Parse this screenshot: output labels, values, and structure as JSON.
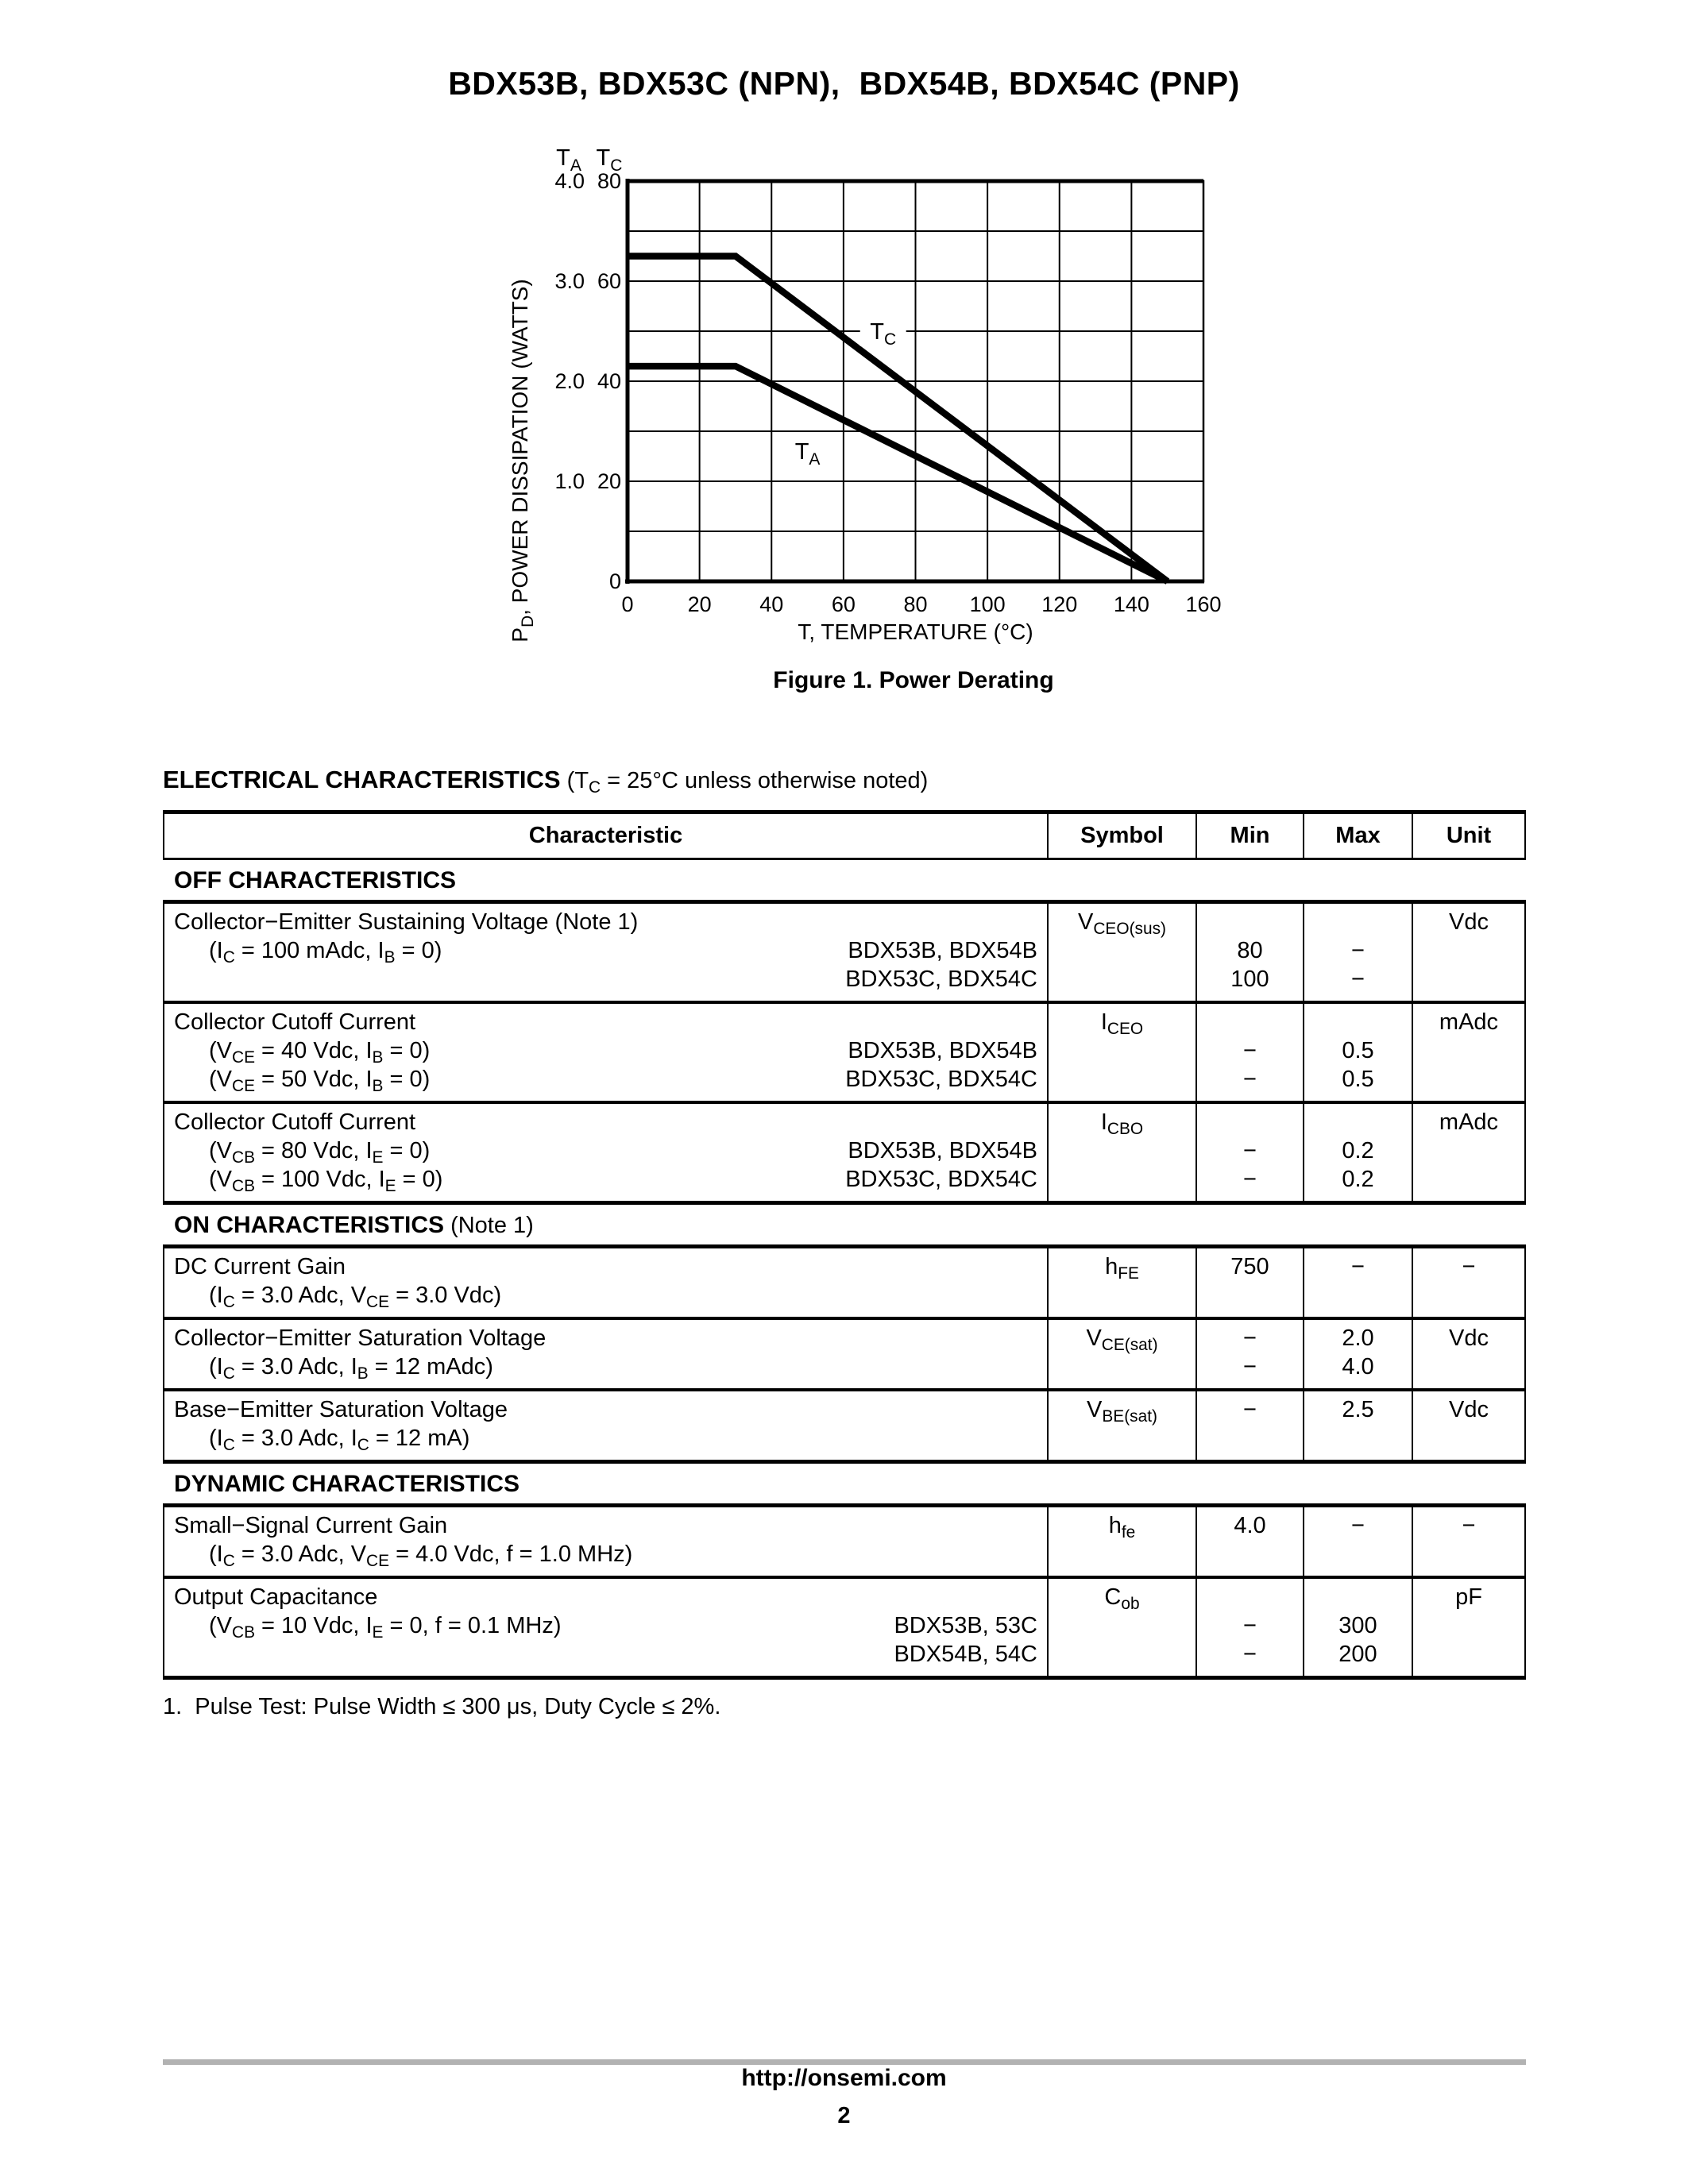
{
  "page": {
    "title": "BDX53B, BDX53C (NPN),  BDX54B, BDX54C (PNP)",
    "footer": {
      "url": "http://onsemi.com",
      "page_number": "2"
    }
  },
  "chart_data": {
    "type": "line",
    "title": "Figure 1. Power Derating",
    "xlabel": "T, TEMPERATURE (°C)",
    "ylabel": "P~D~, POWER DISSIPATION (WATTS)",
    "xlim": [
      0,
      160
    ],
    "x_ticks": [
      0,
      20,
      40,
      60,
      80,
      100,
      120,
      140,
      160
    ],
    "grid": true,
    "grid_x_step": 20,
    "grid_y_step": 10,
    "y_axis_case": {
      "header": "T~C~",
      "lim": [
        0,
        80
      ],
      "ticks": [
        {
          "at": 80,
          "label": "80"
        },
        {
          "at": 60,
          "label": "60"
        },
        {
          "at": 40,
          "label": "40"
        },
        {
          "at": 20,
          "label": "20"
        },
        {
          "at": 0,
          "label": "0"
        }
      ]
    },
    "y_axis_ambient": {
      "header": "T~A~",
      "lim": [
        0,
        4.0
      ],
      "ticks": [
        {
          "at": 80,
          "label": "4.0"
        },
        {
          "at": 60,
          "label": "3.0"
        },
        {
          "at": 40,
          "label": "2.0"
        },
        {
          "at": 20,
          "label": "1.0"
        }
      ]
    },
    "series": [
      {
        "name": "T~C~",
        "points": [
          [
            0,
            65
          ],
          [
            30,
            65
          ],
          [
            150,
            0
          ]
        ],
        "label_at": [
          71,
          50
        ]
      },
      {
        "name": "T~A~",
        "points": [
          [
            0,
            43
          ],
          [
            30,
            43
          ],
          [
            150,
            0
          ]
        ],
        "label_at": [
          50,
          26
        ]
      }
    ]
  },
  "electrical": {
    "heading_bold": "ELECTRICAL CHARACTERISTICS",
    "heading_rest": " (T~C~ = 25°C unless otherwise noted)",
    "columns": [
      "Characteristic",
      "Symbol",
      "Min",
      "Max",
      "Unit"
    ],
    "sections": [
      {
        "title_bold": "OFF CHARACTERISTICS",
        "title_rest": "",
        "rows": [
          {
            "name": "Collector−Emitter Sustaining Voltage (Note 1)",
            "conds": [
              {
                "text": "(I~C~ = 100 mAdc, I~B~ = 0)",
                "device": "BDX53B, BDX54B"
              },
              {
                "text": "",
                "device": "BDX53C, BDX54C"
              }
            ],
            "symbol": "V~CEO(sus)~",
            "unit": "Vdc",
            "value_lines": [
              1,
              2
            ],
            "min": [
              "80",
              "100"
            ],
            "max": [
              "−",
              "−"
            ]
          },
          {
            "name": "Collector Cutoff Current",
            "conds": [
              {
                "text": "(V~CE~ = 40 Vdc, I~B~ = 0)",
                "device": "BDX53B, BDX54B"
              },
              {
                "text": "(V~CE~ = 50 Vdc, I~B~ = 0)",
                "device": "BDX53C, BDX54C"
              }
            ],
            "symbol": "I~CEO~",
            "unit": "mAdc",
            "value_lines": [
              1,
              2
            ],
            "min": [
              "−",
              "−"
            ],
            "max": [
              "0.5",
              "0.5"
            ]
          },
          {
            "name": "Collector Cutoff Current",
            "conds": [
              {
                "text": "(V~CB~ = 80 Vdc, I~E~ = 0)",
                "device": "BDX53B, BDX54B"
              },
              {
                "text": "(V~CB~ = 100 Vdc, I~E~ = 0)",
                "device": "BDX53C, BDX54C"
              }
            ],
            "symbol": "I~CBO~",
            "unit": "mAdc",
            "value_lines": [
              1,
              2
            ],
            "min": [
              "−",
              "−"
            ],
            "max": [
              "0.2",
              "0.2"
            ]
          }
        ]
      },
      {
        "title_bold": "ON CHARACTERISTICS",
        "title_rest": " (Note 1)",
        "rows": [
          {
            "name": "DC Current Gain",
            "conds": [
              {
                "text": "(I~C~ = 3.0 Adc, V~CE~ = 3.0 Vdc)",
                "device": ""
              }
            ],
            "symbol": "h~FE~",
            "unit": "−",
            "value_lines": [
              0
            ],
            "min": [
              "750"
            ],
            "max": [
              "−"
            ]
          },
          {
            "name": "Collector−Emitter Saturation Voltage",
            "conds": [
              {
                "text": "(I~C~ = 3.0 Adc, I~B~ = 12 mAdc)",
                "device": ""
              }
            ],
            "symbol": "V~CE(sat)~",
            "unit": "Vdc",
            "value_lines": [
              0,
              1
            ],
            "min": [
              "−",
              "−"
            ],
            "max": [
              "2.0",
              "4.0"
            ]
          },
          {
            "name": "Base−Emitter Saturation Voltage",
            "conds": [
              {
                "text": "(I~C~ = 3.0 Adc, I~C~ = 12 mA)",
                "device": ""
              }
            ],
            "symbol": "V~BE(sat)~",
            "unit": "Vdc",
            "value_lines": [
              0
            ],
            "min": [
              "−"
            ],
            "max": [
              "2.5"
            ]
          }
        ]
      },
      {
        "title_bold": "DYNAMIC CHARACTERISTICS",
        "title_rest": "",
        "rows": [
          {
            "name": "Small−Signal Current Gain",
            "conds": [
              {
                "text": "(I~C~ = 3.0 Adc, V~CE~ = 4.0 Vdc, f = 1.0 MHz)",
                "device": ""
              }
            ],
            "symbol": "h~fe~",
            "unit": "−",
            "value_lines": [
              0
            ],
            "min": [
              "4.0"
            ],
            "max": [
              "−"
            ]
          },
          {
            "name": "Output Capacitance",
            "conds": [
              {
                "text": "(V~CB~ = 10 Vdc, I~E~ = 0, f = 0.1 MHz)",
                "device": "BDX53B, 53C"
              },
              {
                "text": "",
                "device": "BDX54B, 54C"
              }
            ],
            "symbol": "C~ob~",
            "unit": "pF",
            "value_lines": [
              1,
              2
            ],
            "min": [
              "−",
              "−"
            ],
            "max": [
              "300",
              "200"
            ]
          }
        ]
      }
    ],
    "footnote": "1.  Pulse Test: Pulse Width ≤ 300 μs, Duty Cycle ≤ 2%."
  }
}
